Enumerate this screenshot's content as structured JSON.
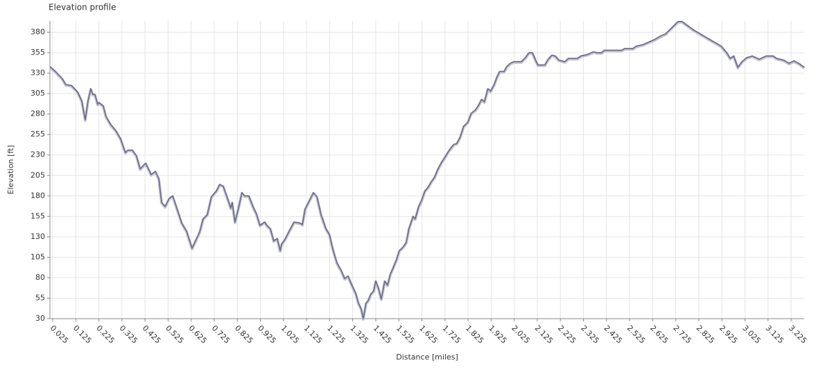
{
  "chart_data": {
    "type": "line",
    "title": "Elevation profile",
    "x_label": "Distance [miles]",
    "y_label": "Elevation [ft]",
    "color": "#6a6a88",
    "grid": true,
    "xlim": [
      0.013,
      3.282
    ],
    "ylim": [
      30,
      394
    ],
    "xticks": [
      0.025,
      0.125,
      0.225,
      0.325,
      0.425,
      0.525,
      0.625,
      0.725,
      0.825,
      0.925,
      1.025,
      1.125,
      1.225,
      1.325,
      1.425,
      1.525,
      1.625,
      1.725,
      1.825,
      1.925,
      2.025,
      2.125,
      2.225,
      2.325,
      2.425,
      2.525,
      2.625,
      2.725,
      2.825,
      2.925,
      3.025,
      3.125,
      3.225
    ],
    "yticks": [
      30,
      55,
      80,
      105,
      130,
      155,
      180,
      205,
      230,
      255,
      280,
      305,
      330,
      355,
      380
    ],
    "x": [
      0.013,
      0.037,
      0.067,
      0.082,
      0.106,
      0.133,
      0.151,
      0.166,
      0.178,
      0.19,
      0.199,
      0.208,
      0.22,
      0.226,
      0.244,
      0.256,
      0.277,
      0.298,
      0.319,
      0.34,
      0.352,
      0.37,
      0.388,
      0.404,
      0.428,
      0.452,
      0.47,
      0.485,
      0.497,
      0.512,
      0.53,
      0.545,
      0.563,
      0.584,
      0.605,
      0.629,
      0.644,
      0.662,
      0.677,
      0.695,
      0.713,
      0.734,
      0.749,
      0.764,
      0.785,
      0.797,
      0.803,
      0.815,
      0.83,
      0.845,
      0.857,
      0.875,
      0.893,
      0.908,
      0.923,
      0.944,
      0.956,
      0.968,
      0.983,
      0.998,
      1.011,
      1.017,
      1.032,
      1.05,
      1.071,
      1.095,
      1.107,
      1.119,
      1.137,
      1.155,
      1.17,
      1.188,
      1.209,
      1.224,
      1.239,
      1.257,
      1.275,
      1.29,
      1.305,
      1.32,
      1.338,
      1.35,
      1.362,
      1.371,
      1.383,
      1.392,
      1.404,
      1.416,
      1.425,
      1.437,
      1.449,
      1.464,
      1.476,
      1.488,
      1.503,
      1.515,
      1.527,
      1.542,
      1.557,
      1.569,
      1.587,
      1.596,
      1.611,
      1.623,
      1.638,
      1.653,
      1.665,
      1.68,
      1.695,
      1.71,
      1.722,
      1.737,
      1.749,
      1.764,
      1.776,
      1.791,
      1.806,
      1.824,
      1.839,
      1.857,
      1.869,
      1.884,
      1.896,
      1.911,
      1.923,
      1.938,
      1.95,
      1.962,
      1.981,
      1.993,
      2.008,
      2.023,
      2.056,
      2.074,
      2.089,
      2.104,
      2.119,
      2.128,
      2.158,
      2.17,
      2.188,
      2.203,
      2.218,
      2.245,
      2.26,
      2.299,
      2.314,
      2.344,
      2.368,
      2.386,
      2.404,
      2.416,
      2.491,
      2.503,
      2.539,
      2.554,
      2.584,
      2.608,
      2.633,
      2.657,
      2.681,
      2.699,
      2.717,
      2.735,
      2.753,
      2.801,
      2.861,
      2.922,
      2.946,
      2.961,
      2.976,
      2.994,
      3.012,
      3.033,
      3.057,
      3.087,
      3.117,
      3.147,
      3.162,
      3.192,
      3.216,
      3.237,
      3.258,
      3.282
    ],
    "values": [
      338,
      332,
      323,
      316,
      315,
      307,
      296,
      273,
      296,
      311,
      304,
      304,
      292,
      294,
      290,
      277,
      267,
      260,
      250,
      233,
      236,
      236,
      229,
      213,
      220,
      206,
      210,
      201,
      172,
      167,
      177,
      180,
      165,
      147,
      137,
      116,
      125,
      136,
      152,
      157,
      179,
      186,
      194,
      192,
      175,
      165,
      172,
      148,
      165,
      184,
      180,
      180,
      167,
      158,
      144,
      148,
      143,
      140,
      125,
      128,
      113,
      121,
      127,
      137,
      148,
      147,
      145,
      164,
      174,
      184,
      179,
      157,
      140,
      133,
      115,
      98,
      89,
      79,
      82,
      72,
      61,
      49,
      42,
      30,
      49,
      52,
      60,
      64,
      76,
      67,
      54,
      76,
      71,
      84,
      94,
      102,
      113,
      117,
      123,
      140,
      155,
      152,
      167,
      174,
      186,
      191,
      197,
      203,
      213,
      221,
      226,
      233,
      238,
      243,
      244,
      252,
      265,
      270,
      281,
      285,
      290,
      298,
      295,
      311,
      308,
      316,
      325,
      332,
      332,
      338,
      342,
      344,
      344,
      349,
      355,
      355,
      345,
      340,
      340,
      346,
      352,
      351,
      346,
      344,
      348,
      348,
      351,
      353,
      356,
      355,
      355,
      358,
      358,
      360,
      360,
      363,
      365,
      368,
      371,
      375,
      378,
      383,
      388,
      393,
      393,
      383,
      373,
      363,
      355,
      348,
      351,
      337,
      344,
      349,
      351,
      347,
      351,
      351,
      348,
      346,
      342,
      345,
      342,
      337
    ]
  }
}
